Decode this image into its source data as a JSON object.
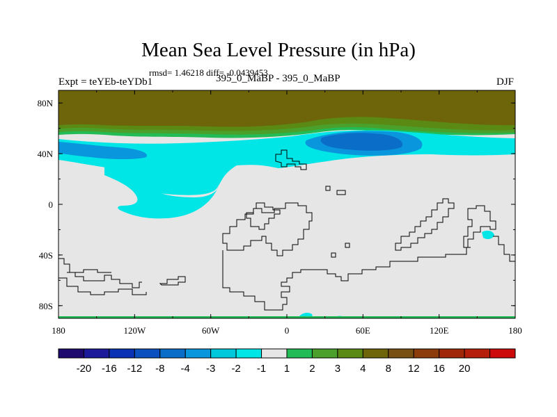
{
  "title": "Mean Sea Level Pressure (in hPa)",
  "stats": "rmsd= 1.46218 diff= -0.0439453",
  "experiment": "Expt = teYEb-teYDb1",
  "runs": "395_0_MaBP - 395_0_MaBP",
  "season": "DJF",
  "map": {
    "lon_range": [
      -180,
      180
    ],
    "lat_range": [
      -90,
      90
    ],
    "background_color": "#e6e6e6",
    "x_ticks": [
      {
        "lon": -180,
        "label": "180"
      },
      {
        "lon": -120,
        "label": "120W"
      },
      {
        "lon": -60,
        "label": "60W"
      },
      {
        "lon": 0,
        "label": "0"
      },
      {
        "lon": 60,
        "label": "60E"
      },
      {
        "lon": 120,
        "label": "120E"
      },
      {
        "lon": 180,
        "label": "180"
      }
    ],
    "y_ticks": [
      {
        "lat": 80,
        "label": "80N"
      },
      {
        "lat": 40,
        "label": "40N"
      },
      {
        "lat": 0,
        "label": "0"
      },
      {
        "lat": -40,
        "label": "40S"
      },
      {
        "lat": -80,
        "label": "80S"
      }
    ]
  },
  "colorbar": {
    "colors": [
      "#1e0a6e",
      "#1a1a9a",
      "#0a32b4",
      "#0a50be",
      "#0a6ec8",
      "#0a96dc",
      "#00c8dc",
      "#00e6e6",
      "#e6e6e6",
      "#22bb55",
      "#4aa02a",
      "#5a8a14",
      "#6e640a",
      "#785014",
      "#8c3c0a",
      "#a02808",
      "#b41e0a",
      "#cd0a0a"
    ],
    "labels": [
      "-20",
      "-16",
      "-12",
      "-8",
      "-4",
      "-3",
      "-2",
      "-1",
      "1",
      "2",
      "3",
      "4",
      "8",
      "12",
      "16",
      "20"
    ]
  }
}
